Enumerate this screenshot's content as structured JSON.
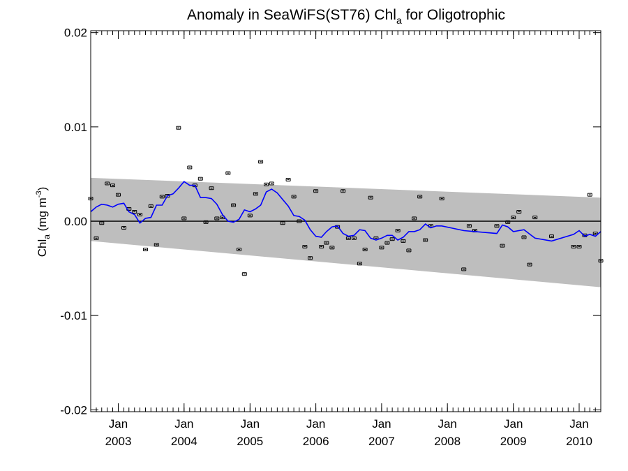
{
  "chart_data": {
    "type": "line",
    "title": {
      "main": "Anomaly in SeaWiFS(ST76) Chl",
      "sub": "a",
      "tail": " for Oligotrophic"
    },
    "ylabel": {
      "main": "Chl",
      "sub": "a",
      "units": " (mg m",
      "sup": "-3",
      "close": ")"
    },
    "xlabel": "",
    "ylim": [
      -0.0202,
      0.0202
    ],
    "xlim": [
      "2002-08-01",
      "2010-05-01"
    ],
    "y_ticks": [
      {
        "value": 0.02,
        "label": "0.02"
      },
      {
        "value": 0.01,
        "label": "0.01"
      },
      {
        "value": 0.0,
        "label": "0.00"
      },
      {
        "value": -0.01,
        "label": "-0.01"
      },
      {
        "value": -0.02,
        "label": "-0.02"
      }
    ],
    "x_ticks": [
      {
        "date": "2003-01-01",
        "month": "Jan",
        "year": "2003"
      },
      {
        "date": "2004-01-01",
        "month": "Jan",
        "year": "2004"
      },
      {
        "date": "2005-01-01",
        "month": "Jan",
        "year": "2005"
      },
      {
        "date": "2006-01-01",
        "month": "Jan",
        "year": "2006"
      },
      {
        "date": "2007-01-01",
        "month": "Jan",
        "year": "2007"
      },
      {
        "date": "2008-01-01",
        "month": "Jan",
        "year": "2008"
      },
      {
        "date": "2009-01-01",
        "month": "Jan",
        "year": "2009"
      },
      {
        "date": "2010-01-01",
        "month": "Jan",
        "year": "2010"
      }
    ],
    "grid": false,
    "zero_line": true,
    "confidence_band": {
      "start": {
        "date": "2002-08-01",
        "upper": 0.0046,
        "lower": -0.0021
      },
      "end": {
        "date": "2010-05-01",
        "upper": 0.0025,
        "lower": -0.007
      }
    },
    "series": [
      {
        "style": "points-with-error-bars",
        "error": 0.0001,
        "points": [
          [
            "2002-08-01",
            0.0024
          ],
          [
            "2002-09-01",
            -0.0018
          ],
          [
            "2002-10-01",
            -0.0002
          ],
          [
            "2002-11-01",
            0.004
          ],
          [
            "2002-12-01",
            0.0038
          ],
          [
            "2003-01-01",
            0.0028
          ],
          [
            "2003-02-01",
            -0.0007
          ],
          [
            "2003-03-01",
            0.0013
          ],
          [
            "2003-04-01",
            0.001
          ],
          [
            "2003-05-01",
            0.0007
          ],
          [
            "2003-06-01",
            -0.003
          ],
          [
            "2003-07-01",
            0.0016
          ],
          [
            "2003-08-01",
            -0.0025
          ],
          [
            "2003-09-01",
            0.0026
          ],
          [
            "2003-10-01",
            0.0027
          ],
          [
            "2003-12-01",
            0.0099
          ],
          [
            "2004-01-01",
            0.0003
          ],
          [
            "2004-02-01",
            0.0057
          ],
          [
            "2004-03-01",
            0.0038
          ],
          [
            "2004-04-01",
            0.0045
          ],
          [
            "2004-05-01",
            -0.0001
          ],
          [
            "2004-06-01",
            0.0035
          ],
          [
            "2004-07-01",
            0.0003
          ],
          [
            "2004-08-01",
            0.0004
          ],
          [
            "2004-09-01",
            0.0051
          ],
          [
            "2004-10-01",
            0.0017
          ],
          [
            "2004-11-01",
            -0.003
          ],
          [
            "2004-12-01",
            -0.0056
          ],
          [
            "2005-01-01",
            0.0006
          ],
          [
            "2005-02-01",
            0.0029
          ],
          [
            "2005-03-01",
            0.0063
          ],
          [
            "2005-04-01",
            0.0039
          ],
          [
            "2005-05-01",
            0.004
          ],
          [
            "2005-07-01",
            -0.0002
          ],
          [
            "2005-08-01",
            0.0044
          ],
          [
            "2005-09-01",
            0.0026
          ],
          [
            "2005-10-01",
            0.0
          ],
          [
            "2005-11-01",
            -0.0027
          ],
          [
            "2005-12-01",
            -0.0039
          ],
          [
            "2006-01-01",
            0.0032
          ],
          [
            "2006-02-01",
            -0.0027
          ],
          [
            "2006-03-01",
            -0.0023
          ],
          [
            "2006-04-01",
            -0.0028
          ],
          [
            "2006-05-01",
            -0.0006
          ],
          [
            "2006-06-01",
            0.0032
          ],
          [
            "2006-07-01",
            -0.0018
          ],
          [
            "2006-08-01",
            -0.0018
          ],
          [
            "2006-09-01",
            -0.0045
          ],
          [
            "2006-10-01",
            -0.003
          ],
          [
            "2006-11-01",
            0.0025
          ],
          [
            "2006-12-01",
            -0.0018
          ],
          [
            "2007-01-01",
            -0.0028
          ],
          [
            "2007-02-01",
            -0.0023
          ],
          [
            "2007-03-01",
            -0.0019
          ],
          [
            "2007-04-01",
            -0.001
          ],
          [
            "2007-05-01",
            -0.0021
          ],
          [
            "2007-06-01",
            -0.0031
          ],
          [
            "2007-07-01",
            0.0003
          ],
          [
            "2007-08-01",
            0.0026
          ],
          [
            "2007-09-01",
            -0.002
          ],
          [
            "2007-10-01",
            -0.0005
          ],
          [
            "2007-12-01",
            0.0024
          ],
          [
            "2008-04-01",
            -0.0051
          ],
          [
            "2008-05-01",
            -0.0005
          ],
          [
            "2008-06-01",
            -0.001
          ],
          [
            "2008-10-01",
            -0.0005
          ],
          [
            "2008-11-01",
            -0.0026
          ],
          [
            "2008-12-01",
            -0.0001
          ],
          [
            "2009-01-01",
            0.0004
          ],
          [
            "2009-02-01",
            0.001
          ],
          [
            "2009-03-01",
            -0.0017
          ],
          [
            "2009-04-01",
            -0.0046
          ],
          [
            "2009-05-01",
            0.0004
          ],
          [
            "2009-08-01",
            -0.0016
          ],
          [
            "2009-12-01",
            -0.0027
          ],
          [
            "2010-01-01",
            -0.0027
          ],
          [
            "2010-02-01",
            -0.0015
          ],
          [
            "2010-03-01",
            0.0028
          ],
          [
            "2010-04-01",
            -0.0013
          ],
          [
            "2010-05-01",
            -0.0042
          ]
        ]
      },
      {
        "style": "line",
        "color": "#0000ff",
        "points": [
          [
            "2002-08-01",
            0.001
          ],
          [
            "2002-09-01",
            0.0015
          ],
          [
            "2002-10-01",
            0.0018
          ],
          [
            "2002-11-01",
            0.0017
          ],
          [
            "2002-12-01",
            0.0015
          ],
          [
            "2003-01-01",
            0.0018
          ],
          [
            "2003-02-01",
            0.0019
          ],
          [
            "2003-03-01",
            0.001
          ],
          [
            "2003-04-01",
            0.0007
          ],
          [
            "2003-05-01",
            -0.0002
          ],
          [
            "2003-06-01",
            0.0003
          ],
          [
            "2003-07-01",
            0.0004
          ],
          [
            "2003-08-01",
            0.0017
          ],
          [
            "2003-09-01",
            0.0017
          ],
          [
            "2003-10-01",
            0.0027
          ],
          [
            "2003-11-01",
            0.0029
          ],
          [
            "2003-12-01",
            0.0035
          ],
          [
            "2004-01-01",
            0.0042
          ],
          [
            "2004-02-01",
            0.0038
          ],
          [
            "2004-03-01",
            0.0038
          ],
          [
            "2004-04-01",
            0.0025
          ],
          [
            "2004-05-01",
            0.0025
          ],
          [
            "2004-06-01",
            0.0024
          ],
          [
            "2004-07-01",
            0.0018
          ],
          [
            "2004-08-01",
            0.0007
          ],
          [
            "2004-09-01",
            0.0
          ],
          [
            "2004-10-01",
            -0.0001
          ],
          [
            "2004-11-01",
            0.0002
          ],
          [
            "2004-12-01",
            0.0012
          ],
          [
            "2005-01-01",
            0.001
          ],
          [
            "2005-02-01",
            0.0013
          ],
          [
            "2005-03-01",
            0.0017
          ],
          [
            "2005-04-01",
            0.0031
          ],
          [
            "2005-05-01",
            0.0034
          ],
          [
            "2005-06-01",
            0.003
          ],
          [
            "2005-07-01",
            0.0023
          ],
          [
            "2005-08-01",
            0.0016
          ],
          [
            "2005-09-01",
            0.0006
          ],
          [
            "2005-10-01",
            0.0005
          ],
          [
            "2005-11-01",
            0.0001
          ],
          [
            "2005-12-01",
            -0.0009
          ],
          [
            "2006-01-01",
            -0.0016
          ],
          [
            "2006-02-01",
            -0.0017
          ],
          [
            "2006-03-01",
            -0.0011
          ],
          [
            "2006-04-01",
            -0.0006
          ],
          [
            "2006-05-01",
            -0.0005
          ],
          [
            "2006-06-01",
            -0.0013
          ],
          [
            "2006-07-01",
            -0.0016
          ],
          [
            "2006-08-01",
            -0.0015
          ],
          [
            "2006-09-01",
            -0.0009
          ],
          [
            "2006-10-01",
            -0.001
          ],
          [
            "2006-11-01",
            -0.0018
          ],
          [
            "2006-12-01",
            -0.002
          ],
          [
            "2007-01-01",
            -0.0018
          ],
          [
            "2007-02-01",
            -0.0015
          ],
          [
            "2007-03-01",
            -0.0015
          ],
          [
            "2007-04-01",
            -0.002
          ],
          [
            "2007-05-01",
            -0.0017
          ],
          [
            "2007-06-01",
            -0.0011
          ],
          [
            "2007-07-01",
            -0.0011
          ],
          [
            "2007-08-01",
            -0.0009
          ],
          [
            "2007-09-01",
            -0.0003
          ],
          [
            "2007-10-01",
            -0.0007
          ],
          [
            "2007-11-01",
            -0.0005
          ],
          [
            "2007-12-01",
            -0.0005
          ],
          [
            "2008-04-01",
            -0.001
          ],
          [
            "2008-10-01",
            -0.0013
          ],
          [
            "2008-11-01",
            -0.0004
          ],
          [
            "2008-12-01",
            -0.0006
          ],
          [
            "2009-01-01",
            -0.0011
          ],
          [
            "2009-03-01",
            -0.0009
          ],
          [
            "2009-05-01",
            -0.0018
          ],
          [
            "2009-08-01",
            -0.0021
          ],
          [
            "2009-12-01",
            -0.0014
          ],
          [
            "2010-01-01",
            -0.001
          ],
          [
            "2010-02-01",
            -0.0016
          ],
          [
            "2010-03-01",
            -0.0014
          ],
          [
            "2010-04-01",
            -0.0016
          ],
          [
            "2010-05-01",
            -0.0011
          ]
        ]
      }
    ]
  }
}
